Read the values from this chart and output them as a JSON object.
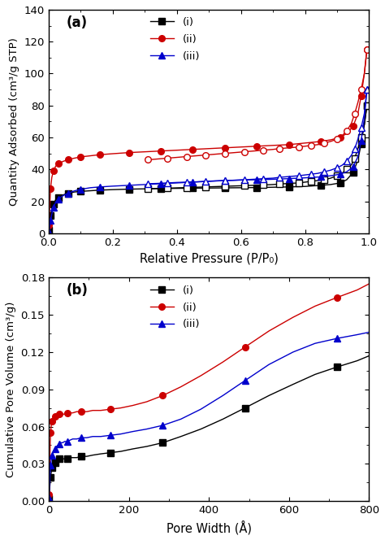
{
  "panel_a": {
    "title": "(a)",
    "xlabel": "Relative Pressure (P/P₀)",
    "ylabel": "Quantity Adsorbed (cm³/g STP)",
    "xlim": [
      0,
      1.0
    ],
    "ylim": [
      0,
      140
    ],
    "yticks": [
      0,
      20,
      40,
      60,
      80,
      100,
      120,
      140
    ],
    "xticks": [
      0.0,
      0.2,
      0.4,
      0.6,
      0.8,
      1.0
    ],
    "series": [
      {
        "label": "(i)",
        "color": "#000000",
        "adsorption_x": [
          0.001,
          0.003,
          0.006,
          0.01,
          0.015,
          0.022,
          0.03,
          0.045,
          0.06,
          0.08,
          0.1,
          0.13,
          0.16,
          0.2,
          0.25,
          0.3,
          0.35,
          0.4,
          0.45,
          0.5,
          0.55,
          0.6,
          0.65,
          0.7,
          0.75,
          0.8,
          0.85,
          0.88,
          0.91,
          0.93,
          0.95,
          0.965,
          0.975,
          0.985,
          0.993
        ],
        "adsorption_y": [
          2,
          6,
          11,
          15,
          18,
          21,
          22.5,
          24,
          25,
          25.8,
          26.2,
          26.6,
          27,
          27.3,
          27.6,
          27.8,
          28.0,
          28.1,
          28.2,
          28.3,
          28.4,
          28.5,
          28.6,
          28.8,
          29.0,
          29.3,
          30.0,
          30.5,
          31.5,
          33.5,
          38,
          46,
          56,
          68,
          80
        ],
        "desorption_x": [
          0.993,
          0.985,
          0.975,
          0.965,
          0.955,
          0.945,
          0.93,
          0.915,
          0.9,
          0.88,
          0.86,
          0.84,
          0.82,
          0.8,
          0.78,
          0.75,
          0.72,
          0.7,
          0.67,
          0.64,
          0.61,
          0.58,
          0.55,
          0.52,
          0.49,
          0.46,
          0.43,
          0.4,
          0.37,
          0.34,
          0.31
        ],
        "desorption_y": [
          80,
          68,
          60,
          53,
          47,
          43,
          40,
          37.5,
          36,
          34.5,
          33.5,
          33,
          32.5,
          32,
          31.5,
          31.2,
          30.8,
          30.5,
          30.2,
          30.0,
          29.8,
          29.6,
          29.4,
          29.2,
          29.0,
          28.8,
          28.6,
          28.4,
          28.2,
          28.0,
          27.8
        ],
        "ads_marker": "s",
        "des_marker": "s"
      },
      {
        "label": "(ii)",
        "color": "#cc0000",
        "adsorption_x": [
          0.001,
          0.003,
          0.006,
          0.01,
          0.015,
          0.022,
          0.03,
          0.045,
          0.06,
          0.08,
          0.1,
          0.13,
          0.16,
          0.2,
          0.25,
          0.3,
          0.35,
          0.4,
          0.45,
          0.5,
          0.55,
          0.6,
          0.65,
          0.7,
          0.75,
          0.8,
          0.85,
          0.88,
          0.91,
          0.93,
          0.95,
          0.965,
          0.975,
          0.985,
          0.993
        ],
        "adsorption_y": [
          5,
          15,
          28,
          35,
          39,
          42,
          43.5,
          45.0,
          46.0,
          47.0,
          47.8,
          48.5,
          49.2,
          49.8,
          50.5,
          51.0,
          51.5,
          52.0,
          52.5,
          53.0,
          53.5,
          54.0,
          54.5,
          55.0,
          55.5,
          56.5,
          57.5,
          58.5,
          60.0,
          62.5,
          67,
          75,
          86,
          100,
          115
        ],
        "desorption_x": [
          0.993,
          0.985,
          0.975,
          0.965,
          0.955,
          0.945,
          0.93,
          0.915,
          0.9,
          0.88,
          0.86,
          0.84,
          0.82,
          0.8,
          0.78,
          0.75,
          0.72,
          0.7,
          0.67,
          0.64,
          0.61,
          0.58,
          0.55,
          0.52,
          0.49,
          0.46,
          0.43,
          0.4,
          0.37,
          0.34,
          0.31
        ],
        "desorption_y": [
          115,
          100,
          90,
          82,
          75,
          69,
          64,
          61,
          59,
          57.5,
          56.5,
          55.5,
          55.0,
          54.5,
          54.0,
          53.5,
          53.0,
          52.5,
          52.0,
          51.5,
          51.0,
          50.5,
          50.0,
          49.5,
          49.0,
          48.5,
          48.0,
          47.5,
          47.0,
          46.5,
          46.0
        ],
        "ads_marker": "o",
        "des_marker": "o"
      },
      {
        "label": "(iii)",
        "color": "#0000cc",
        "adsorption_x": [
          0.001,
          0.003,
          0.006,
          0.01,
          0.015,
          0.022,
          0.03,
          0.045,
          0.06,
          0.08,
          0.1,
          0.13,
          0.16,
          0.2,
          0.25,
          0.3,
          0.35,
          0.4,
          0.45,
          0.5,
          0.55,
          0.6,
          0.65,
          0.7,
          0.75,
          0.8,
          0.85,
          0.88,
          0.91,
          0.93,
          0.95,
          0.965,
          0.975,
          0.985,
          0.993
        ],
        "adsorption_y": [
          1,
          4,
          8,
          12,
          16,
          19.5,
          21.5,
          23.5,
          25.0,
          26.5,
          27.5,
          28.5,
          29.0,
          29.5,
          30.0,
          30.5,
          31.0,
          31.5,
          32.0,
          32.5,
          33.0,
          33.3,
          33.5,
          33.8,
          34.2,
          34.7,
          35.3,
          36.0,
          37.0,
          38.5,
          41.5,
          48,
          58,
          72,
          90
        ],
        "desorption_x": [
          0.993,
          0.985,
          0.975,
          0.965,
          0.955,
          0.945,
          0.93,
          0.915,
          0.9,
          0.88,
          0.86,
          0.84,
          0.82,
          0.8,
          0.78,
          0.75,
          0.72,
          0.7,
          0.67,
          0.64,
          0.61,
          0.58,
          0.55,
          0.52,
          0.49,
          0.46,
          0.43,
          0.4,
          0.37,
          0.34,
          0.31
        ],
        "desorption_y": [
          90,
          75,
          66,
          59,
          53,
          49,
          45,
          42.5,
          41,
          39.5,
          38.5,
          37.5,
          37.0,
          36.5,
          36.0,
          35.5,
          35.0,
          34.5,
          34.2,
          33.8,
          33.5,
          33.2,
          33.0,
          32.8,
          32.5,
          32.2,
          32.0,
          31.8,
          31.5,
          31.2,
          31.0
        ],
        "ads_marker": "^",
        "des_marker": "^"
      }
    ]
  },
  "panel_b": {
    "title": "(b)",
    "xlabel": "Pore Width (Å)",
    "ylabel": "Cumulative Pore Volume (cm³/g)",
    "xlim": [
      0,
      800
    ],
    "ylim": [
      0.0,
      0.18
    ],
    "yticks": [
      0.0,
      0.03,
      0.06,
      0.09,
      0.12,
      0.15,
      0.18
    ],
    "xticks": [
      0,
      200,
      400,
      600,
      800
    ],
    "series": [
      {
        "label": "(i)",
        "color": "#000000",
        "x": [
          1,
          2,
          3,
          4,
          5,
          6,
          7,
          8,
          9,
          10,
          12,
          14,
          16,
          18,
          20,
          23,
          26,
          30,
          35,
          40,
          46,
          53,
          60,
          70,
          82,
          95,
          110,
          130,
          155,
          180,
          210,
          245,
          285,
          330,
          380,
          435,
          490,
          550,
          610,
          665,
          720,
          770,
          800
        ],
        "y": [
          0.002,
          0.007,
          0.012,
          0.016,
          0.019,
          0.022,
          0.024,
          0.026,
          0.027,
          0.028,
          0.029,
          0.03,
          0.031,
          0.032,
          0.033,
          0.033,
          0.034,
          0.034,
          0.034,
          0.034,
          0.034,
          0.035,
          0.035,
          0.035,
          0.036,
          0.036,
          0.037,
          0.038,
          0.039,
          0.04,
          0.042,
          0.044,
          0.047,
          0.052,
          0.058,
          0.066,
          0.075,
          0.085,
          0.094,
          0.102,
          0.108,
          0.113,
          0.117
        ],
        "marker": "s"
      },
      {
        "label": "(ii)",
        "color": "#cc0000",
        "x": [
          1,
          2,
          3,
          4,
          5,
          6,
          7,
          8,
          9,
          10,
          12,
          14,
          16,
          18,
          20,
          23,
          26,
          30,
          35,
          40,
          46,
          53,
          60,
          70,
          82,
          95,
          110,
          130,
          155,
          180,
          210,
          245,
          285,
          330,
          380,
          435,
          490,
          550,
          610,
          665,
          720,
          770,
          800
        ],
        "y": [
          0.005,
          0.018,
          0.035,
          0.048,
          0.055,
          0.059,
          0.062,
          0.063,
          0.064,
          0.065,
          0.066,
          0.067,
          0.068,
          0.068,
          0.069,
          0.069,
          0.07,
          0.07,
          0.07,
          0.07,
          0.071,
          0.071,
          0.071,
          0.072,
          0.072,
          0.072,
          0.073,
          0.073,
          0.074,
          0.075,
          0.077,
          0.08,
          0.085,
          0.092,
          0.101,
          0.112,
          0.124,
          0.137,
          0.148,
          0.157,
          0.164,
          0.17,
          0.175
        ],
        "marker": "o"
      },
      {
        "label": "(iii)",
        "color": "#0000cc",
        "x": [
          1,
          2,
          3,
          4,
          5,
          6,
          7,
          8,
          9,
          10,
          12,
          14,
          16,
          18,
          20,
          23,
          26,
          30,
          35,
          40,
          46,
          53,
          60,
          70,
          82,
          95,
          110,
          130,
          155,
          180,
          210,
          245,
          285,
          330,
          380,
          435,
          490,
          550,
          610,
          665,
          720,
          770,
          800
        ],
        "y": [
          0.003,
          0.01,
          0.018,
          0.025,
          0.029,
          0.032,
          0.034,
          0.036,
          0.037,
          0.038,
          0.04,
          0.041,
          0.042,
          0.043,
          0.044,
          0.045,
          0.046,
          0.047,
          0.047,
          0.048,
          0.048,
          0.049,
          0.05,
          0.05,
          0.051,
          0.051,
          0.052,
          0.052,
          0.053,
          0.054,
          0.056,
          0.058,
          0.061,
          0.066,
          0.074,
          0.085,
          0.097,
          0.11,
          0.12,
          0.127,
          0.131,
          0.134,
          0.136
        ],
        "marker": "^"
      }
    ]
  }
}
